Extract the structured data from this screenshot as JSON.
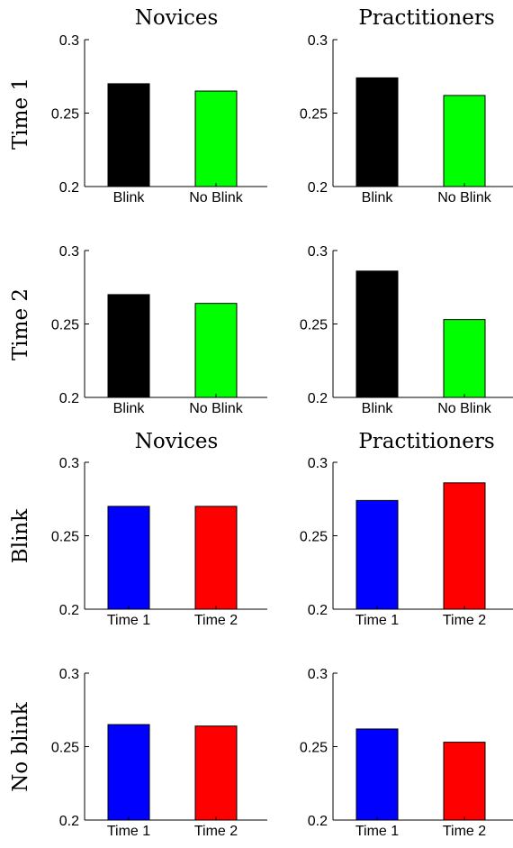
{
  "panel_titles": {
    "top_left": "Novices",
    "top_right": "Practitioners",
    "bottom_left": "Novices",
    "bottom_right": "Practitioners"
  },
  "row_labels": [
    "Time 1",
    "Time 2",
    "Blink",
    "No blink"
  ],
  "colors": {
    "blink": "#000000",
    "no_blink": "#00ff00",
    "time1": "#0000ff",
    "time2": "#ff0000",
    "axis": "#000000"
  },
  "chart_data": [
    {
      "type": "bar",
      "group": "Novices",
      "row": "Time 1",
      "categories": [
        "Blink",
        "No Blink"
      ],
      "values": [
        0.27,
        0.265
      ],
      "colors": [
        "#000000",
        "#00ff00"
      ],
      "ylim": [
        0.2,
        0.3
      ],
      "yticks": [
        "0.2",
        "0.25",
        "0.3"
      ]
    },
    {
      "type": "bar",
      "group": "Practitioners",
      "row": "Time 1",
      "categories": [
        "Blink",
        "No Blink"
      ],
      "values": [
        0.274,
        0.262
      ],
      "colors": [
        "#000000",
        "#00ff00"
      ],
      "ylim": [
        0.2,
        0.3
      ],
      "yticks": [
        "0.2",
        "0.25",
        "0.3"
      ]
    },
    {
      "type": "bar",
      "group": "Novices",
      "row": "Time 2",
      "categories": [
        "Blink",
        "No Blink"
      ],
      "values": [
        0.27,
        0.264
      ],
      "colors": [
        "#000000",
        "#00ff00"
      ],
      "ylim": [
        0.2,
        0.3
      ],
      "yticks": [
        "0.2",
        "0.25",
        "0.3"
      ]
    },
    {
      "type": "bar",
      "group": "Practitioners",
      "row": "Time 2",
      "categories": [
        "Blink",
        "No Blink"
      ],
      "values": [
        0.286,
        0.253
      ],
      "colors": [
        "#000000",
        "#00ff00"
      ],
      "ylim": [
        0.2,
        0.3
      ],
      "yticks": [
        "0.2",
        "0.25",
        "0.3"
      ]
    },
    {
      "type": "bar",
      "group": "Novices",
      "row": "Blink",
      "categories": [
        "Time 1",
        "Time 2"
      ],
      "values": [
        0.27,
        0.27
      ],
      "colors": [
        "#0000ff",
        "#ff0000"
      ],
      "ylim": [
        0.2,
        0.3
      ],
      "yticks": [
        "0.2",
        "0.25",
        "0.3"
      ]
    },
    {
      "type": "bar",
      "group": "Practitioners",
      "row": "Blink",
      "categories": [
        "Time 1",
        "Time 2"
      ],
      "values": [
        0.274,
        0.286
      ],
      "colors": [
        "#0000ff",
        "#ff0000"
      ],
      "ylim": [
        0.2,
        0.3
      ],
      "yticks": [
        "0.2",
        "0.25",
        "0.3"
      ]
    },
    {
      "type": "bar",
      "group": "Novices",
      "row": "No blink",
      "categories": [
        "Time 1",
        "Time 2"
      ],
      "values": [
        0.265,
        0.264
      ],
      "colors": [
        "#0000ff",
        "#ff0000"
      ],
      "ylim": [
        0.2,
        0.3
      ],
      "yticks": [
        "0.2",
        "0.25",
        "0.3"
      ]
    },
    {
      "type": "bar",
      "group": "Practitioners",
      "row": "No blink",
      "categories": [
        "Time 1",
        "Time 2"
      ],
      "values": [
        0.262,
        0.253
      ],
      "colors": [
        "#0000ff",
        "#ff0000"
      ],
      "ylim": [
        0.2,
        0.3
      ],
      "yticks": [
        "0.2",
        "0.25",
        "0.3"
      ]
    }
  ]
}
